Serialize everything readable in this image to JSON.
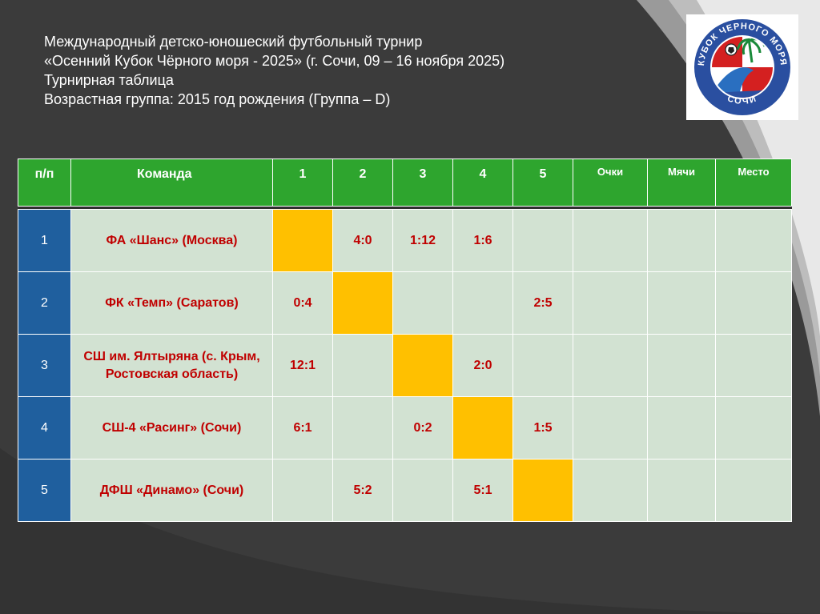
{
  "title_lines": [
    "Международный детско-юношеский футбольный турнир",
    "«Осенний Кубок Чёрного моря - 2025» (г. Сочи, 09 – 16 ноября 2025)",
    "Турнирная таблица",
    "Возрастная группа: 2015 год рождения (Группа – D)"
  ],
  "logo": {
    "top_text": "КУБОК ЧЕРНОГО МОРЯ",
    "bottom_text": "СОЧИ"
  },
  "table": {
    "headers": [
      "п/п",
      "Команда",
      "1",
      "2",
      "3",
      "4",
      "5",
      "Очки",
      "Мячи",
      "Место"
    ],
    "rows": [
      {
        "num": "1",
        "team": "ФА «Шанс» (Москва)",
        "results": [
          "",
          "4:0",
          "1:12",
          "1:6",
          ""
        ],
        "points": "",
        "goals": "",
        "place": ""
      },
      {
        "num": "2",
        "team": "ФК «Темп» (Саратов)",
        "results": [
          "0:4",
          "",
          "",
          "",
          "2:5"
        ],
        "points": "",
        "goals": "",
        "place": ""
      },
      {
        "num": "3",
        "team": "СШ им. Ялтыряна (с. Крым, Ростовская область)",
        "results": [
          "12:1",
          "",
          "",
          "2:0",
          ""
        ],
        "points": "",
        "goals": "",
        "place": ""
      },
      {
        "num": "4",
        "team": "СШ-4 «Расинг» (Сочи)",
        "results": [
          "6:1",
          "",
          "0:2",
          "",
          "1:5"
        ],
        "points": "",
        "goals": "",
        "place": ""
      },
      {
        "num": "5",
        "team": "ДФШ «Динамо» (Сочи)",
        "results": [
          "",
          "5:2",
          "",
          "5:1",
          ""
        ],
        "points": "",
        "goals": "",
        "place": ""
      }
    ]
  },
  "colors": {
    "header_green": "#2ea52e",
    "number_blue": "#1f5f9e",
    "cell_bg": "#d2e2d2",
    "diagonal_gold": "#ffc000",
    "team_red": "#c00000"
  }
}
